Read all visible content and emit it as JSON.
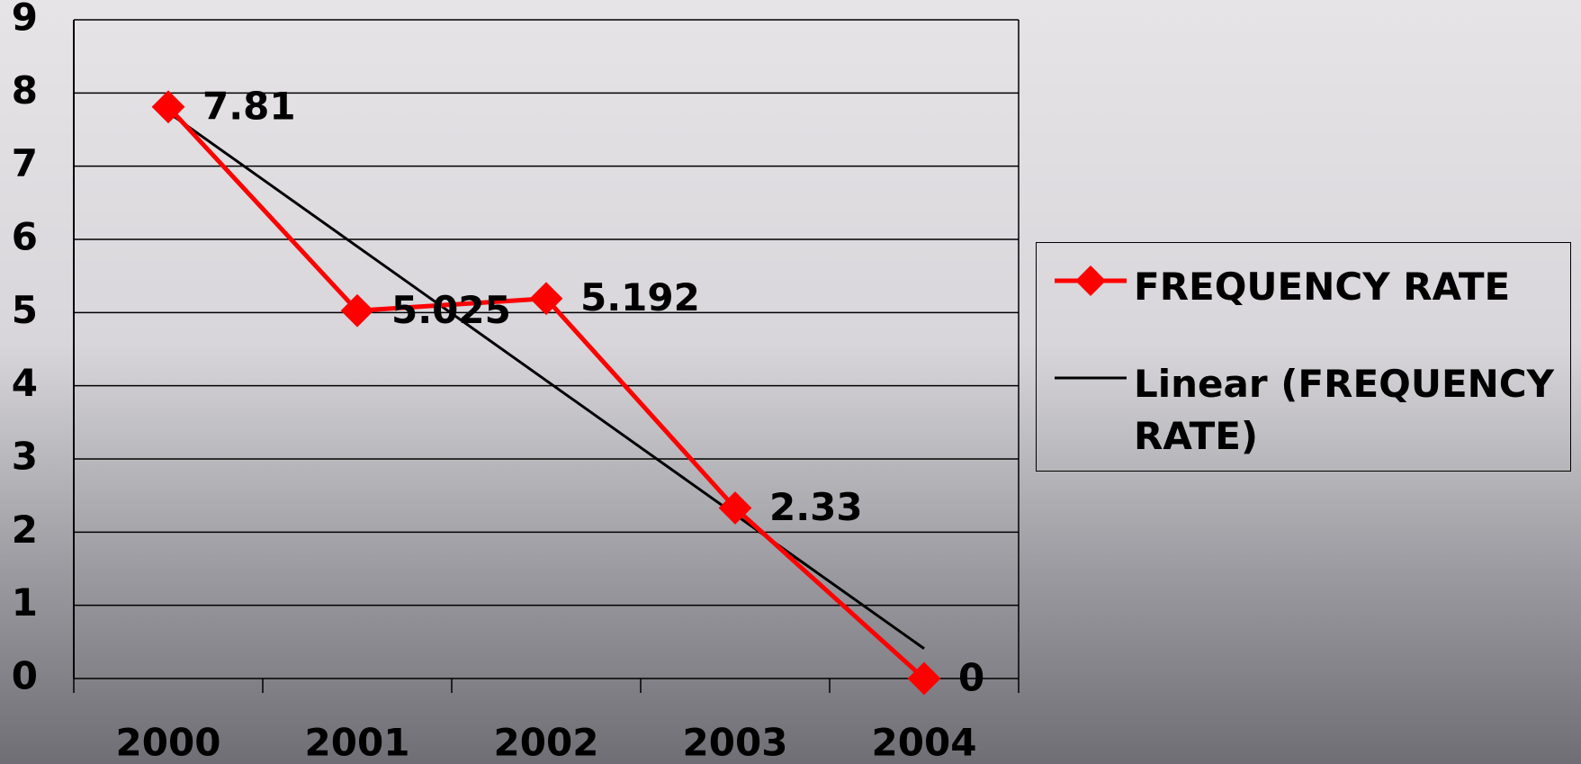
{
  "chart_data": {
    "type": "line",
    "categories": [
      "2000",
      "2001",
      "2002",
      "2003",
      "2004"
    ],
    "series": [
      {
        "name": "FREQUENCY RATE",
        "color": "#ff0000",
        "values": [
          7.81,
          5.025,
          5.192,
          2.33,
          0
        ]
      }
    ],
    "trendline": {
      "name": "Linear (FREQUENCY RATE)",
      "color": "#000000",
      "type": "linear"
    },
    "ylim": [
      0,
      9
    ],
    "yticks": [
      0,
      1,
      2,
      3,
      4,
      5,
      6,
      7,
      8,
      9
    ],
    "grid": true,
    "legend": "right"
  }
}
